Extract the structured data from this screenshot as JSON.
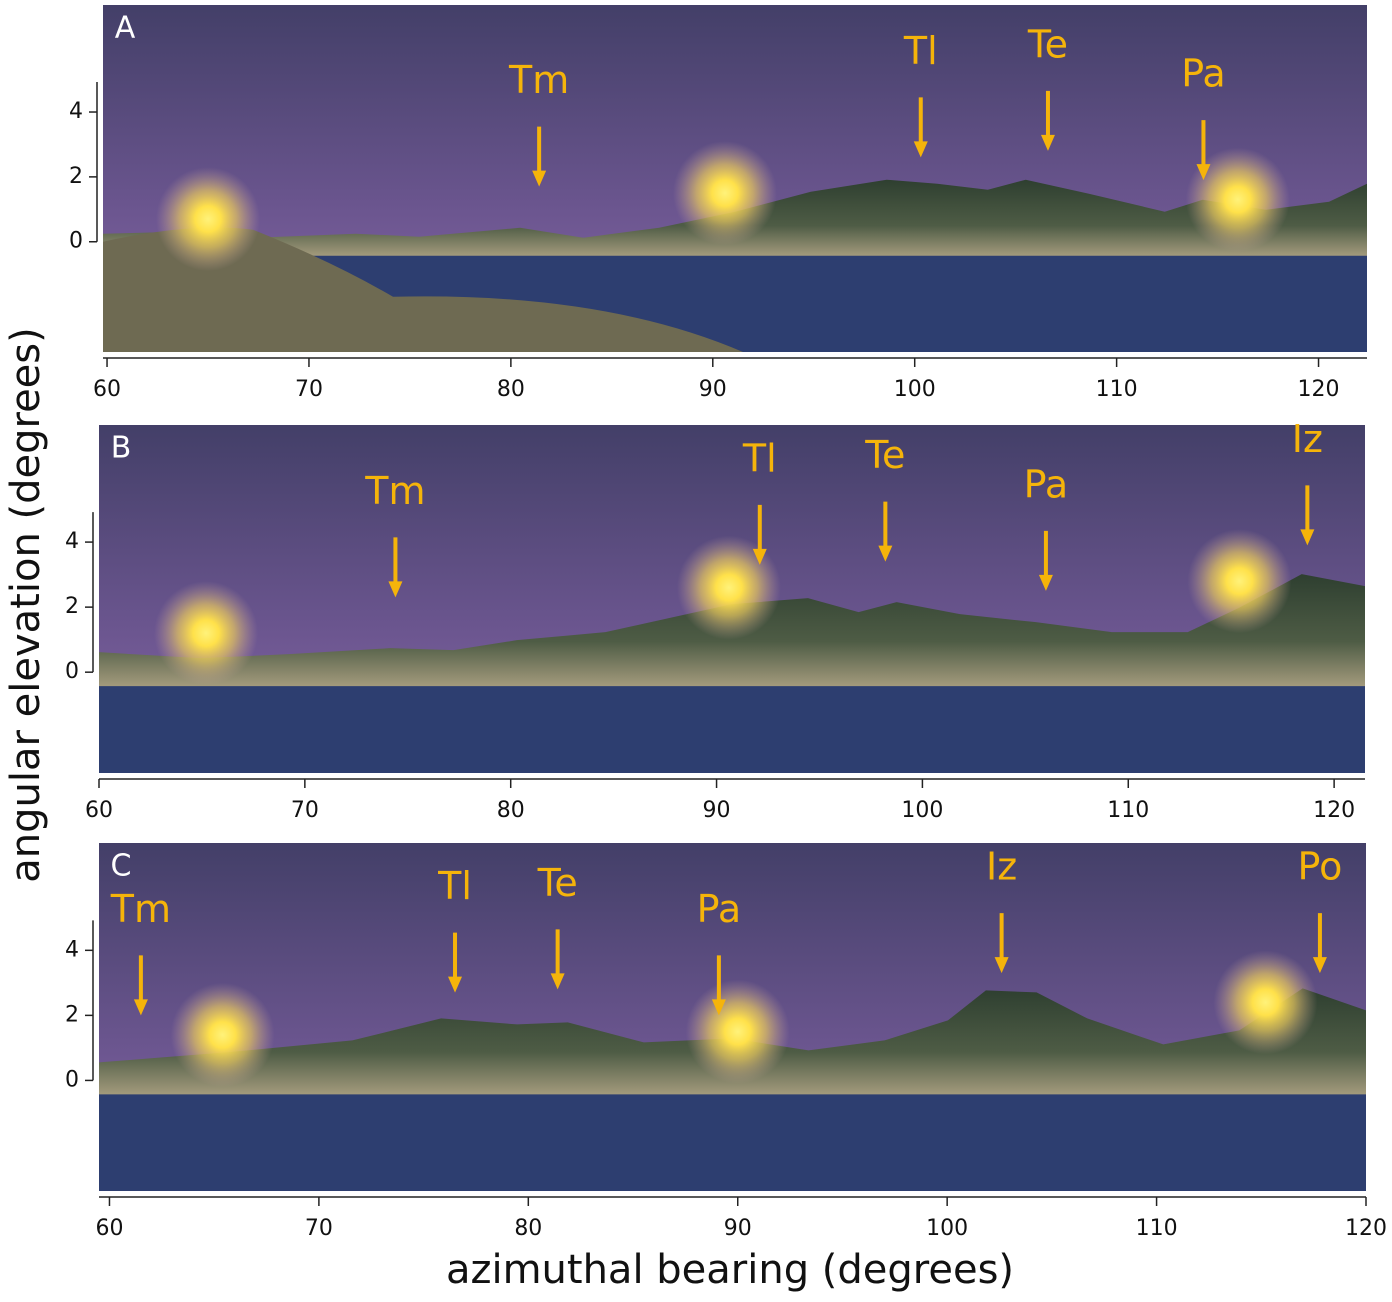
{
  "xlabel": "azimuthal bearing (degrees)",
  "ylabel": "angular elevation (degrees)",
  "chart_data": [
    {
      "type": "panorama",
      "panel_label": "A",
      "xlim": [
        59.8,
        122.4
      ],
      "ylim": [
        -3.4,
        7.3
      ],
      "xticks": [
        60,
        70,
        80,
        90,
        100,
        110,
        120
      ],
      "yticks": [
        0,
        2,
        4
      ],
      "annotations": [
        {
          "label": "Tm",
          "x": 81.4,
          "y": 1.7
        },
        {
          "label": "Tl",
          "x": 100.3,
          "y": 2.6
        },
        {
          "label": "Te",
          "x": 106.6,
          "y": 2.8
        },
        {
          "label": "Pa",
          "x": 114.3,
          "y": 1.9
        }
      ],
      "suns": {
        "x": [
          65.0,
          90.6,
          116.0
        ],
        "y": [
          0.7,
          1.5,
          1.3
        ]
      }
    },
    {
      "type": "panorama",
      "panel_label": "B",
      "xlim": [
        60,
        121.5
      ],
      "ylim": [
        -3.1,
        7.6
      ],
      "xticks": [
        60,
        70,
        80,
        90,
        100,
        110,
        120
      ],
      "yticks": [
        0,
        2,
        4
      ],
      "annotations": [
        {
          "label": "Tm",
          "x": 74.4,
          "y": 2.3
        },
        {
          "label": "Tl",
          "x": 92.1,
          "y": 3.3
        },
        {
          "label": "Te",
          "x": 98.2,
          "y": 3.4
        },
        {
          "label": "Pa",
          "x": 106.0,
          "y": 2.5
        },
        {
          "label": "Iz",
          "x": 118.7,
          "y": 3.9
        }
      ],
      "suns": {
        "x": [
          65.2,
          90.6,
          115.4
        ],
        "y": [
          1.2,
          2.6,
          2.8
        ]
      }
    },
    {
      "type": "panorama",
      "panel_label": "C",
      "xlim": [
        59.5,
        120
      ],
      "ylim": [
        -3.4,
        7.3
      ],
      "xticks": [
        60,
        70,
        80,
        90,
        100,
        110,
        120
      ],
      "yticks": [
        0,
        2,
        4
      ],
      "annotations": [
        {
          "label": "Tm",
          "x": 61.5,
          "y": 2.0
        },
        {
          "label": "Tl",
          "x": 76.5,
          "y": 2.7
        },
        {
          "label": "Te",
          "x": 81.4,
          "y": 2.8
        },
        {
          "label": "Pa",
          "x": 89.1,
          "y": 2.0
        },
        {
          "label": "Iz",
          "x": 102.6,
          "y": 3.3
        },
        {
          "label": "Po",
          "x": 117.8,
          "y": 3.3
        }
      ],
      "suns": {
        "x": [
          65.4,
          90.0,
          115.2
        ],
        "y": [
          1.4,
          1.5,
          2.4
        ]
      }
    }
  ]
}
